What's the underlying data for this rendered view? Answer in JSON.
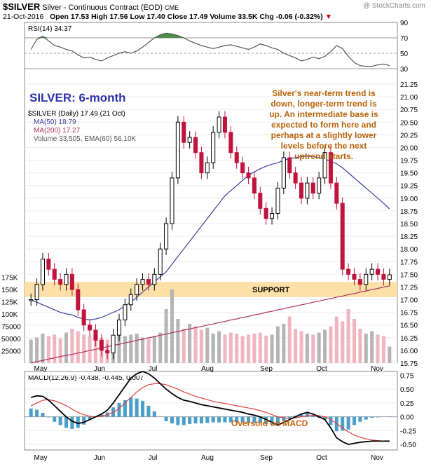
{
  "header": {
    "ticker": "$SILVER",
    "name": "Silver - Continuous Contract (EOD)",
    "exchange": "CME",
    "watermark": "@ StockCharts.com",
    "date": "21-Oct-2016",
    "ohlc": "Open 17.53  High 17.56  Low 17.40  Close 17.49  Volume 33.5K  Chg -0.06 (-0.32%)",
    "chg_arrow": "▼"
  },
  "chart_data": [
    {
      "type": "line",
      "panel": "RSI",
      "legend": "RSI(14) 34.37",
      "ylim": [
        10,
        90
      ],
      "ticks": [
        30,
        50,
        70,
        90
      ],
      "reference_lines": [
        30,
        50,
        70
      ],
      "x_labels": [
        "May",
        "Jun",
        "Jul",
        "Aug",
        "Sep",
        "Oct",
        "Nov"
      ],
      "values": [
        55,
        68,
        72,
        66,
        60,
        58,
        55,
        53,
        48,
        44,
        45,
        42,
        40,
        44,
        47,
        50,
        52,
        50,
        53,
        58,
        64,
        70,
        74,
        76,
        75,
        73,
        70,
        66,
        63,
        60,
        58,
        56,
        58,
        60,
        61,
        59,
        57,
        55,
        58,
        62,
        60,
        57,
        55,
        50,
        47,
        44,
        40,
        42,
        45,
        43,
        46,
        52,
        60,
        56,
        46,
        38,
        34,
        33,
        33,
        35,
        36,
        34
      ]
    },
    {
      "type": "candlestick",
      "panel": "price",
      "title_in_chart": "SILVER: 6-month",
      "legend": [
        "$SILVER (Daily) 17.49 (21 Oct)",
        "MA(50) 18.79",
        "MA(200) 17.27",
        "Volume 33,505, EMA(60) 56.10K"
      ],
      "ylim": [
        15.75,
        21.25
      ],
      "ticks": [
        15.75,
        16.0,
        16.25,
        16.5,
        16.75,
        17.0,
        17.25,
        17.5,
        17.75,
        18.0,
        18.25,
        18.5,
        18.75,
        19.0,
        19.25,
        19.5,
        19.75,
        20.0,
        20.25,
        20.5,
        20.75,
        21.0,
        21.25
      ],
      "x_labels": [
        "May",
        "Jun",
        "Jul",
        "Aug",
        "Sep",
        "Oct",
        "Nov"
      ],
      "support_zone": [
        17.05,
        17.35
      ],
      "support_label": "SUPPORT",
      "closes": [
        17.0,
        17.3,
        17.8,
        17.6,
        17.4,
        17.3,
        17.5,
        17.2,
        16.8,
        16.5,
        16.4,
        16.2,
        16.0,
        15.95,
        16.3,
        16.6,
        16.9,
        17.1,
        17.3,
        17.4,
        17.3,
        17.5,
        18.0,
        18.5,
        19.4,
        20.5,
        20.1,
        20.2,
        19.9,
        19.5,
        19.7,
        20.3,
        20.6,
        20.3,
        19.9,
        19.7,
        19.5,
        19.4,
        19.1,
        18.8,
        18.6,
        18.7,
        19.2,
        19.8,
        19.5,
        19.3,
        19.0,
        19.3,
        19.1,
        19.4,
        19.9,
        19.3,
        18.9,
        17.6,
        17.5,
        17.4,
        17.3,
        17.5,
        17.6,
        17.5,
        17.4,
        17.49
      ],
      "ma50": [
        17.0,
        16.95,
        16.9,
        16.85,
        16.8,
        16.75,
        16.72,
        16.7,
        16.65,
        16.62,
        16.6,
        16.62,
        16.65,
        16.7,
        16.75,
        16.8,
        16.88,
        16.95,
        17.05,
        17.15,
        17.25,
        17.35,
        17.45,
        17.55,
        17.7,
        17.85,
        18.0,
        18.15,
        18.3,
        18.45,
        18.6,
        18.75,
        18.9,
        19.05,
        19.15,
        19.25,
        19.35,
        19.45,
        19.52,
        19.58,
        19.63,
        19.67,
        19.7,
        19.75,
        19.78,
        19.8,
        19.82,
        19.83,
        19.82,
        19.8,
        19.77,
        19.73,
        19.68,
        19.6,
        19.5,
        19.4,
        19.3,
        19.2,
        19.1,
        19.0,
        18.9,
        18.79
      ],
      "ma200": [
        15.75,
        15.78,
        15.8,
        15.83,
        15.85,
        15.88,
        15.9,
        15.92,
        15.95,
        15.97,
        16.0,
        16.02,
        16.05,
        16.07,
        16.1,
        16.12,
        16.15,
        16.17,
        16.2,
        16.22,
        16.25,
        16.27,
        16.3,
        16.32,
        16.35,
        16.37,
        16.4,
        16.42,
        16.45,
        16.47,
        16.5,
        16.52,
        16.55,
        16.57,
        16.6,
        16.62,
        16.65,
        16.67,
        16.7,
        16.72,
        16.75,
        16.77,
        16.8,
        16.82,
        16.85,
        16.87,
        16.9,
        16.92,
        16.95,
        16.97,
        17.0,
        17.02,
        17.05,
        17.07,
        17.1,
        17.12,
        17.15,
        17.17,
        17.2,
        17.22,
        17.25,
        17.27
      ]
    },
    {
      "type": "bar",
      "panel": "volume",
      "ylim": [
        0,
        200000
      ],
      "ticks": [
        "25000",
        "50000",
        "75000",
        "100K",
        "125K",
        "150K",
        "175K"
      ],
      "values": [
        48000,
        52000,
        60000,
        55000,
        58000,
        50000,
        62000,
        70000,
        65000,
        58000,
        55000,
        60000,
        52000,
        48000,
        50000,
        56000,
        55000,
        58000,
        60000,
        52000,
        50000,
        55000,
        62000,
        110000,
        150000,
        90000,
        70000,
        80000,
        75000,
        68000,
        72000,
        60000,
        65000,
        58000,
        62000,
        60000,
        55000,
        58000,
        60000,
        62000,
        56000,
        58000,
        75000,
        80000,
        95000,
        70000,
        65000,
        60000,
        58000,
        62000,
        68000,
        75000,
        95000,
        85000,
        110000,
        90000,
        70000,
        60000,
        65000,
        58000,
        55000,
        33505
      ]
    },
    {
      "type": "line",
      "panel": "MACD",
      "legend": "MACD(12,26,9) -0.438, -0.445, 0.007",
      "ylim": [
        -0.6,
        0.82
      ],
      "ticks": [
        -0.5,
        -0.25,
        0.0,
        0.25,
        0.5,
        0.75
      ],
      "x_labels": [
        "May",
        "Jun",
        "Jul",
        "Aug",
        "Sep",
        "Oct",
        "Nov"
      ],
      "callout": "Oversold on MACD",
      "series": [
        {
          "role": "macd",
          "values": [
            0.35,
            0.38,
            0.37,
            0.3,
            0.2,
            0.1,
            0.0,
            -0.08,
            -0.12,
            -0.1,
            -0.05,
            0.0,
            0.05,
            0.12,
            0.25,
            0.4,
            0.55,
            0.7,
            0.78,
            0.82,
            0.78,
            0.7,
            0.6,
            0.5,
            0.42,
            0.35,
            0.3,
            0.28,
            0.25,
            0.22,
            0.2,
            0.18,
            0.16,
            0.14,
            0.12,
            0.1,
            0.08,
            0.05,
            0.03,
            0.0,
            -0.05,
            -0.1,
            -0.15,
            -0.1,
            -0.05,
            0.0,
            0.05,
            0.08,
            0.05,
            0.0,
            -0.05,
            -0.2,
            -0.38,
            -0.45,
            -0.5,
            -0.48,
            -0.46,
            -0.45,
            -0.44,
            -0.44,
            -0.44,
            -0.438
          ]
        },
        {
          "role": "signal",
          "values": [
            0.2,
            0.25,
            0.3,
            0.31,
            0.29,
            0.25,
            0.2,
            0.14,
            0.08,
            0.04,
            0.01,
            0.0,
            0.01,
            0.04,
            0.08,
            0.15,
            0.25,
            0.35,
            0.45,
            0.53,
            0.58,
            0.6,
            0.6,
            0.58,
            0.54,
            0.5,
            0.45,
            0.41,
            0.37,
            0.34,
            0.31,
            0.28,
            0.26,
            0.24,
            0.22,
            0.2,
            0.18,
            0.16,
            0.14,
            0.11,
            0.08,
            0.04,
            0.0,
            -0.02,
            -0.03,
            -0.02,
            0.0,
            0.02,
            0.03,
            0.02,
            0.0,
            -0.05,
            -0.12,
            -0.2,
            -0.27,
            -0.33,
            -0.37,
            -0.4,
            -0.42,
            -0.43,
            -0.44,
            -0.445
          ]
        }
      ]
    }
  ],
  "annotation": {
    "lines": [
      "Silver's near-term trend is",
      "down, longer-term trend is",
      "up. An intermediate base is",
      "expected to form here and",
      "perhaps at a slightly lower",
      "levels before the next",
      "uptrend starts."
    ],
    "color": "#b8620a"
  },
  "colors": {
    "up_candle": "#000000",
    "down_candle": "#c0143c",
    "ma50": "#3a3f9e",
    "ma200": "#b03060",
    "volume_up": "#b5b5b5",
    "volume_down": "#f0b5bf",
    "support_band": "#fde0a8",
    "rsi_line": "#555555",
    "rsi_fill": "#4d8c4a",
    "macd": "#000000",
    "signal": "#e04040",
    "histogram": "#4a9ec8",
    "title_blue": "#2c33a8",
    "orange": "#c8640a"
  }
}
